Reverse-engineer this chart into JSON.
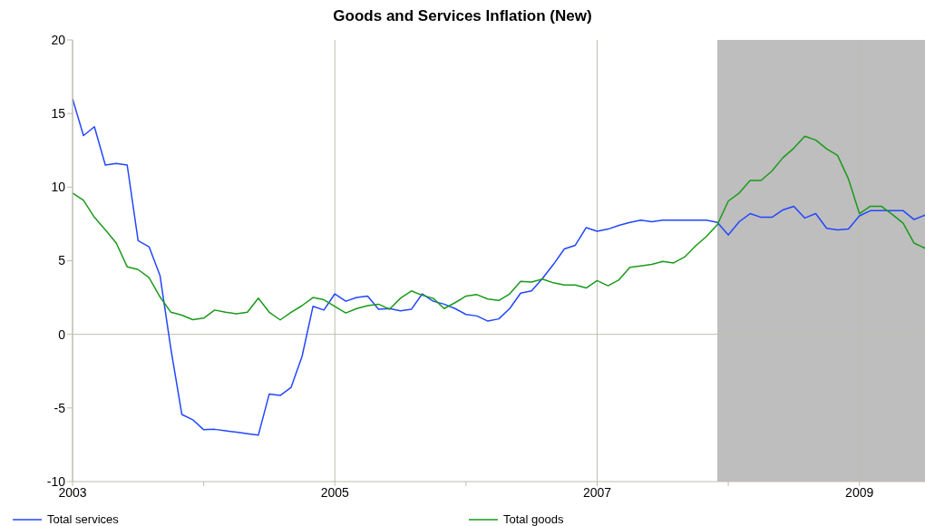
{
  "chart_data": {
    "type": "line",
    "title": "Goods and Services Inflation (New)",
    "x": [
      "2003-01",
      "2003-02",
      "2003-03",
      "2003-04",
      "2003-05",
      "2003-06",
      "2003-07",
      "2003-08",
      "2003-09",
      "2003-10",
      "2003-11",
      "2003-12",
      "2004-01",
      "2004-02",
      "2004-03",
      "2004-04",
      "2004-05",
      "2004-06",
      "2004-07",
      "2004-08",
      "2004-09",
      "2004-10",
      "2004-11",
      "2004-12",
      "2005-01",
      "2005-02",
      "2005-03",
      "2005-04",
      "2005-05",
      "2005-06",
      "2005-07",
      "2005-08",
      "2005-09",
      "2005-10",
      "2005-11",
      "2005-12",
      "2006-01",
      "2006-02",
      "2006-03",
      "2006-04",
      "2006-05",
      "2006-06",
      "2006-07",
      "2006-08",
      "2006-09",
      "2006-10",
      "2006-11",
      "2006-12",
      "2007-01",
      "2007-02",
      "2007-03",
      "2007-04",
      "2007-05",
      "2007-06",
      "2007-07",
      "2007-08",
      "2007-09",
      "2007-10",
      "2007-11",
      "2007-12",
      "2008-01",
      "2008-02",
      "2008-03",
      "2008-04",
      "2008-05",
      "2008-06",
      "2008-07",
      "2008-08",
      "2008-09",
      "2008-10",
      "2008-11",
      "2008-12",
      "2009-01",
      "2009-02",
      "2009-03",
      "2009-04",
      "2009-05",
      "2009-06",
      "2009-07"
    ],
    "series": [
      {
        "name": "Total services",
        "color": "#2346ff",
        "values": [
          16.0,
          13.5,
          14.1,
          11.5,
          11.6,
          11.5,
          6.36,
          5.95,
          4.0,
          -1.0,
          -5.44,
          -5.8,
          -6.48,
          -6.45,
          -6.55,
          -6.65,
          -6.75,
          -6.85,
          -4.05,
          -4.15,
          -3.6,
          -1.5,
          1.9,
          1.65,
          2.75,
          2.25,
          2.5,
          2.6,
          1.7,
          1.75,
          1.6,
          1.7,
          2.75,
          2.25,
          2.05,
          1.75,
          1.35,
          1.25,
          0.9,
          1.05,
          1.75,
          2.8,
          2.95,
          3.8,
          4.75,
          5.8,
          6.05,
          7.25,
          7.0,
          7.15,
          7.4,
          7.6,
          7.75,
          7.65,
          7.75,
          7.75,
          7.75,
          7.75,
          7.75,
          7.6,
          6.75,
          7.65,
          8.2,
          7.95,
          7.95,
          8.45,
          8.7,
          7.9,
          8.2,
          7.2,
          7.1,
          7.15,
          8.05,
          8.4,
          8.4,
          8.4,
          8.4,
          7.8,
          8.1
        ]
      },
      {
        "name": "Total goods",
        "color": "#1a9a1a",
        "values": [
          9.6,
          9.1,
          7.95,
          7.1,
          6.2,
          4.59,
          4.4,
          3.85,
          2.55,
          1.5,
          1.3,
          1.0,
          1.1,
          1.65,
          1.5,
          1.4,
          1.5,
          2.46,
          1.5,
          0.98,
          1.5,
          1.95,
          2.5,
          2.35,
          1.9,
          1.45,
          1.75,
          1.95,
          2.05,
          1.71,
          2.45,
          2.95,
          2.65,
          2.45,
          1.75,
          2.15,
          2.6,
          2.7,
          2.4,
          2.3,
          2.75,
          3.6,
          3.55,
          3.75,
          3.5,
          3.35,
          3.35,
          3.15,
          3.65,
          3.3,
          3.7,
          4.55,
          4.65,
          4.75,
          4.95,
          4.85,
          5.25,
          6.0,
          6.65,
          7.45,
          9.05,
          9.6,
          10.45,
          10.45,
          11.1,
          12.0,
          12.65,
          13.45,
          13.2,
          12.6,
          12.15,
          10.55,
          8.2,
          8.7,
          8.7,
          8.15,
          7.55,
          6.2,
          5.85
        ]
      }
    ],
    "xlim": [
      "2003-01",
      "2009-07"
    ],
    "xticks": [
      {
        "value": "2003",
        "label": "2003"
      },
      {
        "value": "2004",
        "label": null
      },
      {
        "value": "2005",
        "label": "2005"
      },
      {
        "value": "2006",
        "label": null
      },
      {
        "value": "2007",
        "label": "2007"
      },
      {
        "value": "2008",
        "label": null
      },
      {
        "value": "2009",
        "label": "2009"
      }
    ],
    "ylim": [
      -10,
      20
    ],
    "yticks": [
      -10,
      -5,
      0,
      5,
      10,
      15,
      20
    ],
    "grid": "x",
    "ref_lines": [
      {
        "axis": "y",
        "value": 0,
        "color": "#c0bcb0"
      }
    ],
    "bands": [
      {
        "axis": "x",
        "from": "2007-12",
        "to": "2009-07",
        "color": "#bebebe"
      }
    ],
    "legend": "bottom",
    "marker": "none",
    "line_style": "solid"
  }
}
